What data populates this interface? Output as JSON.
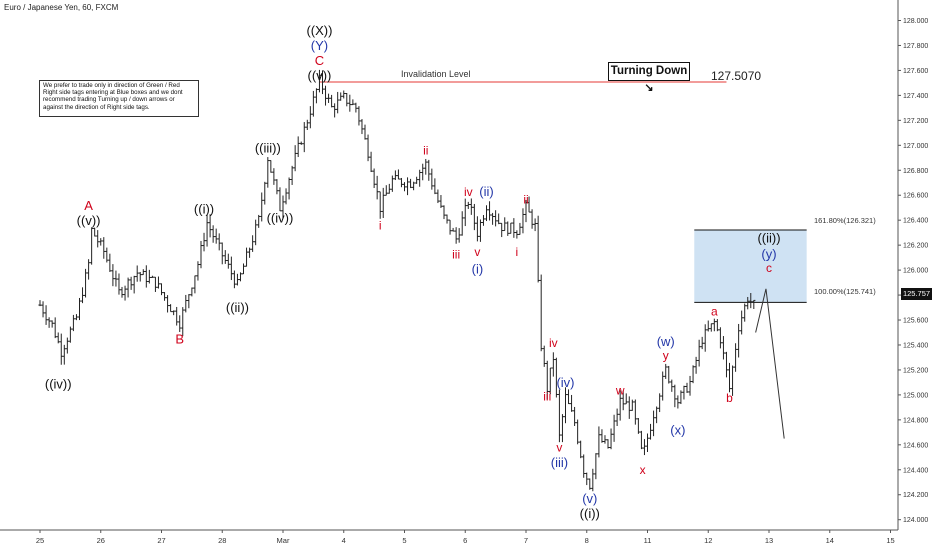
{
  "chart_title": "Euro / Japanese Yen, 60, FXCM",
  "note_text": "We prefer to trade only in direction of Green / Red Right side tags entering at Blue boxes and we dont recommend trading Turning up / down arrows or against the direction of Right side tags.",
  "turning_label": "Turning Down",
  "invalidation_label": "Invalidation Level",
  "invalidation_price": "127.5070",
  "fib_161_label": "161.80%(126.321)",
  "fib_100_label": "100.00%(125.741)",
  "last_price_label": "125.757",
  "colors": {
    "red": "#d0021b",
    "blue": "#2337a8",
    "black": "#111111",
    "box_fill": "#cfe2f3",
    "invalidation_line": "#e53935"
  },
  "chart_data": {
    "type": "ohlc",
    "title": "Euro / Japanese Yen, 60, FXCM",
    "y_axis": {
      "range": [
        123.8,
        128.2
      ],
      "ticks": [
        "124.000",
        "124.200",
        "124.400",
        "124.600",
        "124.800",
        "125.000",
        "125.200",
        "125.400",
        "125.600",
        "125.800",
        "126.000",
        "126.200",
        "126.400",
        "126.600",
        "126.800",
        "127.000",
        "127.200",
        "127.400",
        "127.600",
        "127.800",
        "128.000"
      ]
    },
    "x_axis": {
      "ticks": [
        "25",
        "26",
        "27",
        "28",
        "Mar",
        "4",
        "5",
        "6",
        "7",
        "8",
        "11",
        "12",
        "13",
        "14",
        "15"
      ]
    },
    "path": [
      {
        "d": 0.0,
        "p": 125.72
      },
      {
        "d": 0.2,
        "p": 125.56
      },
      {
        "d": 0.35,
        "p": 125.35
      },
      {
        "d": 0.6,
        "p": 125.62
      },
      {
        "d": 0.8,
        "p": 126.05
      },
      {
        "d": 0.85,
        "p": 126.32
      },
      {
        "d": 1.05,
        "p": 126.15
      },
      {
        "d": 1.3,
        "p": 125.82
      },
      {
        "d": 1.6,
        "p": 125.98
      },
      {
        "d": 1.9,
        "p": 125.9
      },
      {
        "d": 2.3,
        "p": 125.58
      },
      {
        "d": 2.6,
        "p": 126.05
      },
      {
        "d": 2.75,
        "p": 126.38
      },
      {
        "d": 3.0,
        "p": 126.12
      },
      {
        "d": 3.25,
        "p": 125.88
      },
      {
        "d": 3.6,
        "p": 126.4
      },
      {
        "d": 3.75,
        "p": 126.9
      },
      {
        "d": 3.95,
        "p": 126.5
      },
      {
        "d": 4.2,
        "p": 126.9
      },
      {
        "d": 4.4,
        "p": 127.2
      },
      {
        "d": 4.6,
        "p": 127.52
      },
      {
        "d": 4.8,
        "p": 127.3
      },
      {
        "d": 5.0,
        "p": 127.38
      },
      {
        "d": 5.2,
        "p": 127.3
      },
      {
        "d": 5.4,
        "p": 126.95
      },
      {
        "d": 5.6,
        "p": 126.5
      },
      {
        "d": 5.8,
        "p": 126.72
      },
      {
        "d": 6.1,
        "p": 126.7
      },
      {
        "d": 6.35,
        "p": 126.85
      },
      {
        "d": 6.5,
        "p": 126.62
      },
      {
        "d": 6.65,
        "p": 126.42
      },
      {
        "d": 6.85,
        "p": 126.25
      },
      {
        "d": 7.05,
        "p": 126.55
      },
      {
        "d": 7.2,
        "p": 126.3
      },
      {
        "d": 7.35,
        "p": 126.52
      },
      {
        "d": 7.6,
        "p": 126.35
      },
      {
        "d": 7.85,
        "p": 126.32
      },
      {
        "d": 8.0,
        "p": 126.5
      },
      {
        "d": 8.15,
        "p": 126.35
      },
      {
        "d": 8.25,
        "p": 125.4
      },
      {
        "d": 8.35,
        "p": 125.05
      },
      {
        "d": 8.45,
        "p": 125.3
      },
      {
        "d": 8.55,
        "p": 124.66
      },
      {
        "d": 8.65,
        "p": 124.98
      },
      {
        "d": 8.8,
        "p": 124.78
      },
      {
        "d": 8.95,
        "p": 124.4
      },
      {
        "d": 9.05,
        "p": 124.28
      },
      {
        "d": 9.2,
        "p": 124.65
      },
      {
        "d": 9.35,
        "p": 124.58
      },
      {
        "d": 9.55,
        "p": 124.95
      },
      {
        "d": 9.75,
        "p": 124.9
      },
      {
        "d": 9.92,
        "p": 124.5
      },
      {
        "d": 10.1,
        "p": 124.85
      },
      {
        "d": 10.3,
        "p": 125.2
      },
      {
        "d": 10.5,
        "p": 124.95
      },
      {
        "d": 10.7,
        "p": 125.1
      },
      {
        "d": 10.9,
        "p": 125.45
      },
      {
        "d": 11.1,
        "p": 125.58
      },
      {
        "d": 11.2,
        "p": 125.45
      },
      {
        "d": 11.35,
        "p": 125.05
      },
      {
        "d": 11.5,
        "p": 125.55
      },
      {
        "d": 11.65,
        "p": 125.78
      },
      {
        "d": 11.78,
        "p": 125.7
      }
    ],
    "projection": [
      {
        "d": 11.78,
        "p": 125.5
      },
      {
        "d": 11.95,
        "p": 125.85
      },
      {
        "d": 12.25,
        "p": 124.65
      }
    ],
    "invalidation": {
      "price": 127.507,
      "d_start": 4.6,
      "d_end": 11.3,
      "label": "Invalidation Level",
      "price_label": "127.5070"
    },
    "target_box": {
      "from": 125.741,
      "to": 126.321,
      "d_start": 10.77,
      "d_end": 12.62,
      "fib_161": "161.80%(126.321)",
      "fib_100": "100.00%(125.741)"
    },
    "wave_labels": [
      {
        "text": "((iv))",
        "d": 0.3,
        "p": 125.08,
        "color": "black",
        "size": 13
      },
      {
        "text": "A",
        "d": 0.8,
        "p": 126.51,
        "color": "red",
        "size": 13
      },
      {
        "text": "((v))",
        "d": 0.8,
        "p": 126.39,
        "color": "black",
        "size": 13
      },
      {
        "text": "B",
        "d": 2.3,
        "p": 125.44,
        "color": "red",
        "size": 13
      },
      {
        "text": "((i))",
        "d": 2.7,
        "p": 126.48,
        "color": "black",
        "size": 13
      },
      {
        "text": "((ii))",
        "d": 3.25,
        "p": 125.69,
        "color": "black",
        "size": 13
      },
      {
        "text": "((iii))",
        "d": 3.75,
        "p": 126.97,
        "color": "black",
        "size": 13
      },
      {
        "text": "((iv))",
        "d": 3.95,
        "p": 126.41,
        "color": "black",
        "size": 13
      },
      {
        "text": "((X))",
        "d": 4.6,
        "p": 127.91,
        "color": "black",
        "size": 13
      },
      {
        "text": "(Y)",
        "d": 4.6,
        "p": 127.79,
        "color": "blue",
        "size": 13
      },
      {
        "text": "C",
        "d": 4.6,
        "p": 127.67,
        "color": "red",
        "size": 13
      },
      {
        "text": "((v))",
        "d": 4.6,
        "p": 127.55,
        "color": "black",
        "size": 13
      },
      {
        "text": "i",
        "d": 5.6,
        "p": 126.35,
        "color": "red",
        "size": 12
      },
      {
        "text": "ii",
        "d": 6.35,
        "p": 126.95,
        "color": "red",
        "size": 12
      },
      {
        "text": "iii",
        "d": 6.85,
        "p": 126.12,
        "color": "red",
        "size": 12
      },
      {
        "text": "iv",
        "d": 7.05,
        "p": 126.62,
        "color": "red",
        "size": 12
      },
      {
        "text": "v",
        "d": 7.2,
        "p": 126.14,
        "color": "red",
        "size": 12
      },
      {
        "text": "(ii)",
        "d": 7.35,
        "p": 126.62,
        "color": "blue",
        "size": 13
      },
      {
        "text": "(i)",
        "d": 7.2,
        "p": 126.0,
        "color": "blue",
        "size": 13
      },
      {
        "text": "i",
        "d": 7.85,
        "p": 126.14,
        "color": "red",
        "size": 12
      },
      {
        "text": "ii",
        "d": 8.0,
        "p": 126.56,
        "color": "red",
        "size": 12
      },
      {
        "text": "iv",
        "d": 8.45,
        "p": 125.41,
        "color": "red",
        "size": 12
      },
      {
        "text": "iii",
        "d": 8.35,
        "p": 124.98,
        "color": "red",
        "size": 12
      },
      {
        "text": "(iv)",
        "d": 8.65,
        "p": 125.09,
        "color": "blue",
        "size": 13
      },
      {
        "text": "v",
        "d": 8.55,
        "p": 124.57,
        "color": "red",
        "size": 12
      },
      {
        "text": "(iii)",
        "d": 8.55,
        "p": 124.45,
        "color": "blue",
        "size": 13
      },
      {
        "text": "w",
        "d": 9.55,
        "p": 125.03,
        "color": "red",
        "size": 12
      },
      {
        "text": "(v)",
        "d": 9.05,
        "p": 124.16,
        "color": "blue",
        "size": 13
      },
      {
        "text": "((i))",
        "d": 9.05,
        "p": 124.04,
        "color": "black",
        "size": 13
      },
      {
        "text": "x",
        "d": 9.92,
        "p": 124.39,
        "color": "red",
        "size": 12
      },
      {
        "text": "(w)",
        "d": 10.3,
        "p": 125.42,
        "color": "blue",
        "size": 13
      },
      {
        "text": "y",
        "d": 10.3,
        "p": 125.31,
        "color": "red",
        "size": 12
      },
      {
        "text": "(x)",
        "d": 10.5,
        "p": 124.71,
        "color": "blue",
        "size": 13
      },
      {
        "text": "a",
        "d": 11.1,
        "p": 125.66,
        "color": "red",
        "size": 12
      },
      {
        "text": "b",
        "d": 11.35,
        "p": 124.97,
        "color": "red",
        "size": 12
      },
      {
        "text": "((ii))",
        "d": 12.0,
        "p": 126.25,
        "color": "black",
        "size": 13
      },
      {
        "text": "(y)",
        "d": 12.0,
        "p": 126.12,
        "color": "blue",
        "size": 13
      },
      {
        "text": "c",
        "d": 12.0,
        "p": 126.01,
        "color": "red",
        "size": 12
      }
    ]
  }
}
